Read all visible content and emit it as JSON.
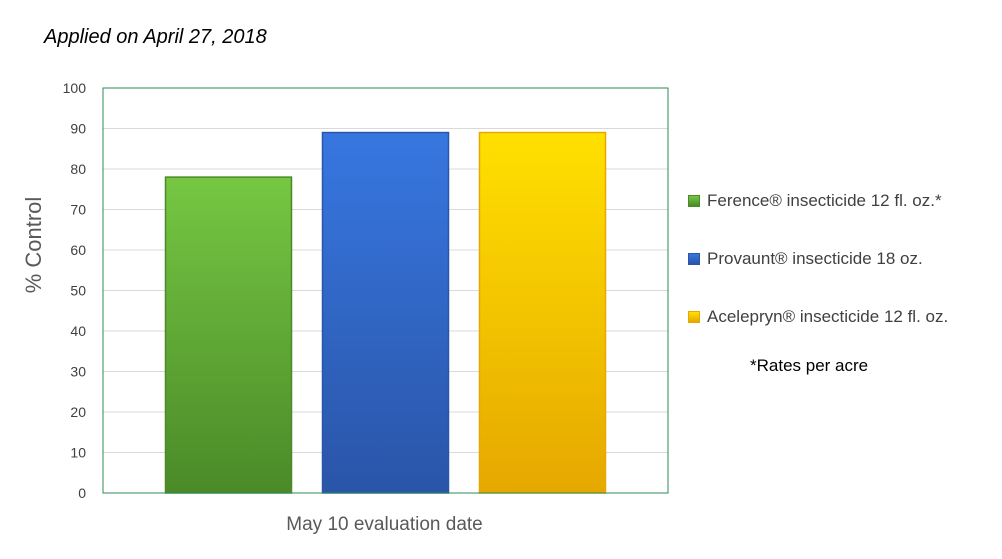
{
  "subtitle": "Applied on April 27, 2018",
  "note": "*Rates per acre",
  "chart_data": {
    "type": "bar",
    "title": "",
    "ylabel": "% Control",
    "xlabel": "May 10 evaluation date",
    "ylim": [
      0,
      100
    ],
    "y_ticks": [
      0,
      10,
      20,
      30,
      40,
      50,
      60,
      70,
      80,
      90,
      100
    ],
    "grid": true,
    "legend_position": "right",
    "categories": [
      "May 10 evaluation date"
    ],
    "series": [
      {
        "name": "Ference® insecticide 12 fl. oz.*",
        "values": [
          78
        ],
        "color": "#5fae32",
        "color_light": "#76c743",
        "color_dark": "#4a8a28"
      },
      {
        "name": "Provaunt® insecticide 18 oz.",
        "values": [
          89
        ],
        "color": "#2f67c9",
        "color_light": "#3777e0",
        "color_dark": "#2a55a8"
      },
      {
        "name": "Acelepryn® insecticide  12 fl. oz.",
        "values": [
          89
        ],
        "color": "#f7c400",
        "color_light": "#ffe000",
        "color_dark": "#e6a800"
      }
    ],
    "plot_border_color": "#2e8b57",
    "grid_color": "#d9d9d9"
  }
}
